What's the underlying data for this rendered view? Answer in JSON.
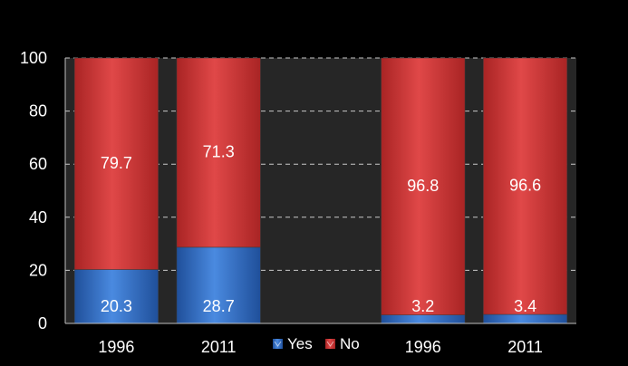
{
  "chart_data": {
    "type": "bar",
    "stacked": true,
    "percent": true,
    "categories": [
      "1996",
      "2011",
      "",
      "1996",
      "2011"
    ],
    "series": [
      {
        "name": "Yes",
        "values": [
          20.3,
          28.7,
          null,
          3.2,
          3.4
        ],
        "color": "#3c78d0"
      },
      {
        "name": "No",
        "values": [
          79.7,
          71.3,
          null,
          96.8,
          96.6
        ],
        "color": "#d33c3c"
      }
    ],
    "ylim": [
      0,
      100
    ],
    "yticks": [
      0,
      20,
      40,
      60,
      80,
      100
    ],
    "grid": true,
    "legend": "bottom-center",
    "plot_background": "#262626",
    "page_background": "#000000"
  }
}
